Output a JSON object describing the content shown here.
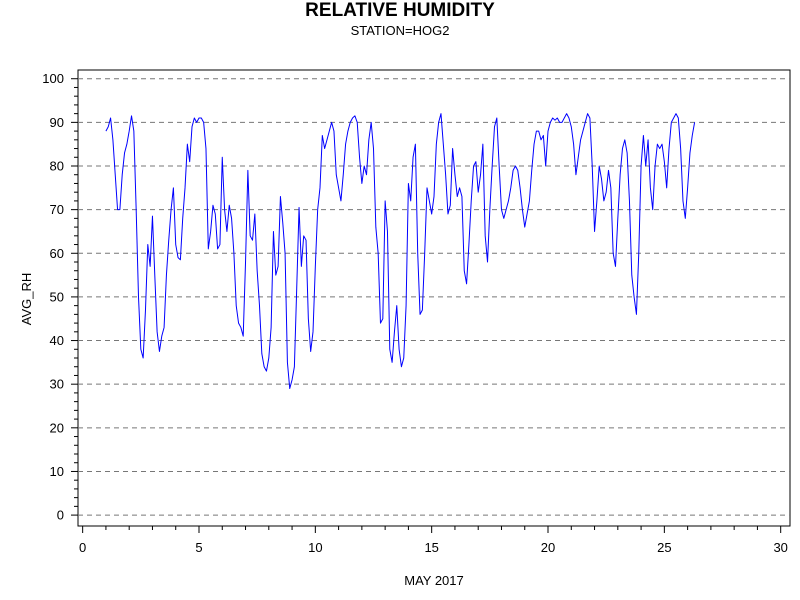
{
  "chart_data": {
    "type": "line",
    "title": "RELATIVE HUMIDITY",
    "subtitle": "STATION=HOG2",
    "xlabel": "MAY 2017",
    "ylabel": "AVG_RH",
    "xlim": [
      -0.2,
      30.4
    ],
    "ylim": [
      -2.5,
      102
    ],
    "x_ticks": [
      0,
      5,
      10,
      15,
      20,
      25,
      30
    ],
    "y_ticks": [
      0,
      10,
      20,
      30,
      40,
      50,
      60,
      70,
      80,
      90,
      100
    ],
    "grid": "horizontal dashed",
    "line_color": "#0000ff",
    "series": [
      {
        "points": [
          [
            1.0,
            88
          ],
          [
            1.1,
            89
          ],
          [
            1.2,
            91
          ],
          [
            1.3,
            86
          ],
          [
            1.4,
            78
          ],
          [
            1.5,
            70
          ],
          [
            1.6,
            70
          ],
          [
            1.7,
            78
          ],
          [
            1.8,
            83
          ],
          [
            1.9,
            85
          ],
          [
            2.0,
            88
          ],
          [
            2.1,
            91.5
          ],
          [
            2.2,
            88
          ],
          [
            2.3,
            70
          ],
          [
            2.4,
            50
          ],
          [
            2.5,
            38
          ],
          [
            2.6,
            36
          ],
          [
            2.7,
            47
          ],
          [
            2.8,
            62
          ],
          [
            2.9,
            57
          ],
          [
            3.0,
            68.5
          ],
          [
            3.1,
            55
          ],
          [
            3.2,
            42
          ],
          [
            3.3,
            37.5
          ],
          [
            3.4,
            41
          ],
          [
            3.5,
            43
          ],
          [
            3.6,
            55
          ],
          [
            3.7,
            63
          ],
          [
            3.8,
            70
          ],
          [
            3.9,
            75
          ],
          [
            4.0,
            62
          ],
          [
            4.1,
            59
          ],
          [
            4.2,
            58.5
          ],
          [
            4.3,
            68
          ],
          [
            4.4,
            75
          ],
          [
            4.5,
            85
          ],
          [
            4.6,
            81
          ],
          [
            4.7,
            89
          ],
          [
            4.8,
            91
          ],
          [
            4.9,
            90
          ],
          [
            5.0,
            91
          ],
          [
            5.1,
            91
          ],
          [
            5.2,
            90
          ],
          [
            5.3,
            84
          ],
          [
            5.4,
            61
          ],
          [
            5.5,
            65
          ],
          [
            5.6,
            71
          ],
          [
            5.7,
            69
          ],
          [
            5.8,
            61
          ],
          [
            5.9,
            62
          ],
          [
            6.0,
            82
          ],
          [
            6.1,
            70
          ],
          [
            6.2,
            65
          ],
          [
            6.3,
            71
          ],
          [
            6.4,
            68
          ],
          [
            6.5,
            60
          ],
          [
            6.6,
            48
          ],
          [
            6.7,
            44
          ],
          [
            6.8,
            43
          ],
          [
            6.9,
            41
          ],
          [
            7.0,
            58
          ],
          [
            7.1,
            79
          ],
          [
            7.2,
            64
          ],
          [
            7.3,
            63
          ],
          [
            7.4,
            69
          ],
          [
            7.5,
            56
          ],
          [
            7.6,
            48
          ],
          [
            7.7,
            37
          ],
          [
            7.8,
            34
          ],
          [
            7.9,
            33
          ],
          [
            8.0,
            36
          ],
          [
            8.1,
            43
          ],
          [
            8.2,
            65
          ],
          [
            8.3,
            55
          ],
          [
            8.4,
            57
          ],
          [
            8.5,
            73
          ],
          [
            8.6,
            67
          ],
          [
            8.7,
            60
          ],
          [
            8.8,
            35
          ],
          [
            8.9,
            29
          ],
          [
            9.0,
            31
          ],
          [
            9.1,
            34
          ],
          [
            9.2,
            52
          ],
          [
            9.3,
            70.5
          ],
          [
            9.4,
            57
          ],
          [
            9.5,
            64
          ],
          [
            9.6,
            63
          ],
          [
            9.7,
            45
          ],
          [
            9.8,
            37.5
          ],
          [
            9.9,
            42
          ],
          [
            10.0,
            57
          ],
          [
            10.1,
            70
          ],
          [
            10.2,
            75
          ],
          [
            10.3,
            87
          ],
          [
            10.4,
            84
          ],
          [
            10.5,
            86
          ],
          [
            10.6,
            88
          ],
          [
            10.7,
            90
          ],
          [
            10.8,
            88
          ],
          [
            10.9,
            78
          ],
          [
            11.0,
            75
          ],
          [
            11.1,
            72
          ],
          [
            11.2,
            78
          ],
          [
            11.3,
            85
          ],
          [
            11.4,
            88
          ],
          [
            11.5,
            90
          ],
          [
            11.6,
            91
          ],
          [
            11.7,
            91.5
          ],
          [
            11.8,
            90
          ],
          [
            11.9,
            82
          ],
          [
            12.0,
            76
          ],
          [
            12.1,
            80
          ],
          [
            12.2,
            78
          ],
          [
            12.3,
            86
          ],
          [
            12.4,
            90
          ],
          [
            12.5,
            84
          ],
          [
            12.6,
            66
          ],
          [
            12.7,
            60
          ],
          [
            12.8,
            44
          ],
          [
            12.9,
            45
          ],
          [
            13.0,
            72
          ],
          [
            13.1,
            65
          ],
          [
            13.2,
            38
          ],
          [
            13.3,
            35
          ],
          [
            13.4,
            42
          ],
          [
            13.5,
            48
          ],
          [
            13.6,
            38
          ],
          [
            13.7,
            34
          ],
          [
            13.8,
            36
          ],
          [
            13.9,
            48
          ],
          [
            14.0,
            76
          ],
          [
            14.1,
            72
          ],
          [
            14.2,
            82
          ],
          [
            14.3,
            85
          ],
          [
            14.4,
            60
          ],
          [
            14.5,
            46
          ],
          [
            14.6,
            47
          ],
          [
            14.7,
            60
          ],
          [
            14.8,
            75
          ],
          [
            14.9,
            72
          ],
          [
            15.0,
            69
          ],
          [
            15.1,
            73
          ],
          [
            15.2,
            85
          ],
          [
            15.3,
            90
          ],
          [
            15.4,
            92
          ],
          [
            15.5,
            85
          ],
          [
            15.6,
            78
          ],
          [
            15.7,
            69
          ],
          [
            15.8,
            71
          ],
          [
            15.9,
            84
          ],
          [
            16.0,
            78
          ],
          [
            16.1,
            73
          ],
          [
            16.2,
            75
          ],
          [
            16.3,
            73
          ],
          [
            16.4,
            56
          ],
          [
            16.5,
            53
          ],
          [
            16.6,
            62
          ],
          [
            16.7,
            72
          ],
          [
            16.8,
            80
          ],
          [
            16.9,
            81
          ],
          [
            17.0,
            74
          ],
          [
            17.1,
            78
          ],
          [
            17.2,
            85
          ],
          [
            17.3,
            64
          ],
          [
            17.4,
            58
          ],
          [
            17.5,
            70
          ],
          [
            17.6,
            80
          ],
          [
            17.7,
            89
          ],
          [
            17.8,
            91
          ],
          [
            17.9,
            80
          ],
          [
            18.0,
            70
          ],
          [
            18.1,
            68
          ],
          [
            18.2,
            70
          ],
          [
            18.3,
            72
          ],
          [
            18.4,
            75
          ],
          [
            18.5,
            79
          ],
          [
            18.6,
            80
          ],
          [
            18.7,
            79
          ],
          [
            18.8,
            75
          ],
          [
            18.9,
            70
          ],
          [
            19.0,
            66
          ],
          [
            19.1,
            69
          ],
          [
            19.2,
            72
          ],
          [
            19.3,
            79
          ],
          [
            19.4,
            85
          ],
          [
            19.5,
            88
          ],
          [
            19.6,
            88
          ],
          [
            19.7,
            86
          ],
          [
            19.8,
            87
          ],
          [
            19.9,
            80
          ],
          [
            20.0,
            88
          ],
          [
            20.1,
            90
          ],
          [
            20.2,
            91
          ],
          [
            20.3,
            90.5
          ],
          [
            20.4,
            91
          ],
          [
            20.5,
            90
          ],
          [
            20.6,
            90
          ],
          [
            20.7,
            91
          ],
          [
            20.8,
            92
          ],
          [
            20.9,
            91
          ],
          [
            21.0,
            89
          ],
          [
            21.1,
            85
          ],
          [
            21.2,
            78
          ],
          [
            21.3,
            82
          ],
          [
            21.4,
            86
          ],
          [
            21.5,
            88
          ],
          [
            21.6,
            90
          ],
          [
            21.7,
            92
          ],
          [
            21.8,
            91
          ],
          [
            21.9,
            80
          ],
          [
            22.0,
            65
          ],
          [
            22.1,
            72
          ],
          [
            22.2,
            80
          ],
          [
            22.3,
            77
          ],
          [
            22.4,
            72
          ],
          [
            22.5,
            74
          ],
          [
            22.6,
            79
          ],
          [
            22.7,
            75
          ],
          [
            22.8,
            60
          ],
          [
            22.9,
            57
          ],
          [
            23.0,
            68
          ],
          [
            23.1,
            78
          ],
          [
            23.2,
            84
          ],
          [
            23.3,
            86
          ],
          [
            23.4,
            83
          ],
          [
            23.5,
            72
          ],
          [
            23.6,
            55
          ],
          [
            23.7,
            50
          ],
          [
            23.8,
            46
          ],
          [
            23.9,
            60
          ],
          [
            24.0,
            80
          ],
          [
            24.1,
            87
          ],
          [
            24.2,
            80
          ],
          [
            24.3,
            86
          ],
          [
            24.4,
            75
          ],
          [
            24.5,
            70
          ],
          [
            24.6,
            80
          ],
          [
            24.7,
            85
          ],
          [
            24.8,
            84
          ],
          [
            24.9,
            85
          ],
          [
            25.0,
            81
          ],
          [
            25.1,
            75
          ],
          [
            25.2,
            84
          ],
          [
            25.3,
            90
          ],
          [
            25.4,
            91
          ],
          [
            25.5,
            92
          ],
          [
            25.6,
            91
          ],
          [
            25.7,
            84
          ],
          [
            25.8,
            72
          ],
          [
            25.9,
            68
          ],
          [
            26.0,
            75
          ],
          [
            26.1,
            83
          ],
          [
            26.2,
            87
          ],
          [
            26.3,
            90
          ]
        ]
      }
    ]
  }
}
